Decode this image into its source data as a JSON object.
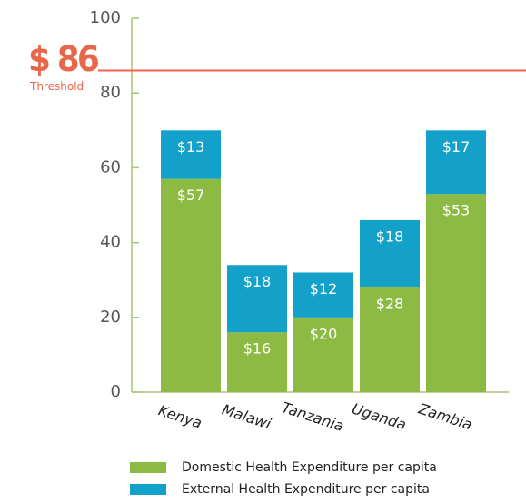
{
  "chart_data": {
    "type": "stacked_bar",
    "categories": [
      "Kenya",
      "Malawi",
      "Tanzania",
      "Uganda",
      "Zambia"
    ],
    "series": [
      {
        "name": "Domestic Health Expenditure per capita",
        "color": "#8dba43",
        "values": [
          57,
          16,
          20,
          28,
          53
        ],
        "value_labels": [
          "$57",
          "$16",
          "$20",
          "$28",
          "$53"
        ]
      },
      {
        "name": "External Health Expenditure per capita",
        "color": "#13a0c9",
        "values": [
          13,
          18,
          12,
          18,
          17
        ],
        "value_labels": [
          "$13",
          "$18",
          "$12",
          "$18",
          "$17"
        ]
      }
    ],
    "ylim": [
      0,
      100
    ],
    "yticks": [
      0,
      20,
      40,
      60,
      80,
      100
    ],
    "threshold": {
      "value": 86,
      "label": "$ 86",
      "text": "Threshold",
      "color": "#e8674a"
    }
  }
}
